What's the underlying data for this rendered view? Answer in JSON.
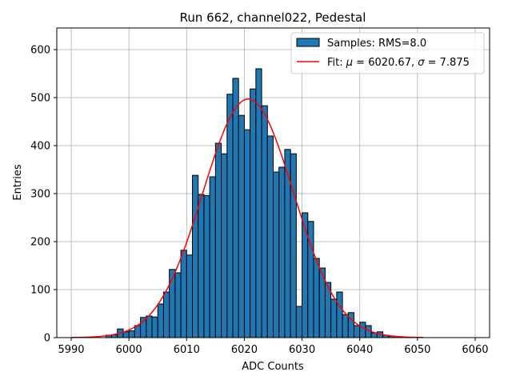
{
  "chart_data": {
    "type": "bar",
    "title": "Run 662, channel022, Pedestal",
    "xlabel": "ADC Counts",
    "ylabel": "Entries",
    "xlim": [
      5987.5,
      6062.5
    ],
    "ylim": [
      0,
      645
    ],
    "x_ticks": [
      5990,
      6000,
      6010,
      6020,
      6030,
      6040,
      6050,
      6060
    ],
    "y_ticks": [
      0,
      100,
      200,
      300,
      400,
      500,
      600
    ],
    "grid": true,
    "legend_position": "upper right",
    "legend": [
      "Samples: RMS=8.0",
      "Fit: $\\mu$ = 6020.67, $\\sigma$ = 7.875"
    ],
    "histogram": {
      "name": "Samples: RMS=8.0",
      "color": "#1f77b4",
      "edge_color": "#000000",
      "bin_width": 1,
      "bins": [
        [
          5996,
          5
        ],
        [
          5997,
          6
        ],
        [
          5998,
          18
        ],
        [
          5999,
          12
        ],
        [
          6000,
          14
        ],
        [
          6001,
          25
        ],
        [
          6002,
          42
        ],
        [
          6003,
          45
        ],
        [
          6004,
          43
        ],
        [
          6005,
          70
        ],
        [
          6006,
          95
        ],
        [
          6007,
          142
        ],
        [
          6008,
          135
        ],
        [
          6009,
          182
        ],
        [
          6010,
          172
        ],
        [
          6011,
          338
        ],
        [
          6012,
          298
        ],
        [
          6013,
          296
        ],
        [
          6014,
          335
        ],
        [
          6015,
          405
        ],
        [
          6016,
          383
        ],
        [
          6017,
          507
        ],
        [
          6018,
          540
        ],
        [
          6019,
          463
        ],
        [
          6020,
          433
        ],
        [
          6021,
          518
        ],
        [
          6022,
          560
        ],
        [
          6023,
          483
        ],
        [
          6024,
          420
        ],
        [
          6025,
          345
        ],
        [
          6026,
          355
        ],
        [
          6027,
          392
        ],
        [
          6028,
          383
        ],
        [
          6029,
          65
        ],
        [
          6030,
          260
        ],
        [
          6031,
          242
        ],
        [
          6032,
          165
        ],
        [
          6033,
          145
        ],
        [
          6034,
          115
        ],
        [
          6035,
          80
        ],
        [
          6036,
          95
        ],
        [
          6037,
          48
        ],
        [
          6038,
          52
        ],
        [
          6039,
          25
        ],
        [
          6040,
          32
        ],
        [
          6041,
          25
        ],
        [
          6042,
          10
        ],
        [
          6043,
          12
        ],
        [
          6044,
          5
        ],
        [
          6045,
          3
        ],
        [
          6046,
          2
        ]
      ]
    },
    "fit": {
      "name": "Fit: $\\mu$ = 6020.67, $\\sigma$ = 7.875",
      "color": "#ff0000",
      "type": "gaussian",
      "mu": 6020.67,
      "sigma": 7.875,
      "amplitude": 497,
      "x_range": [
        5990,
        6051
      ]
    }
  }
}
